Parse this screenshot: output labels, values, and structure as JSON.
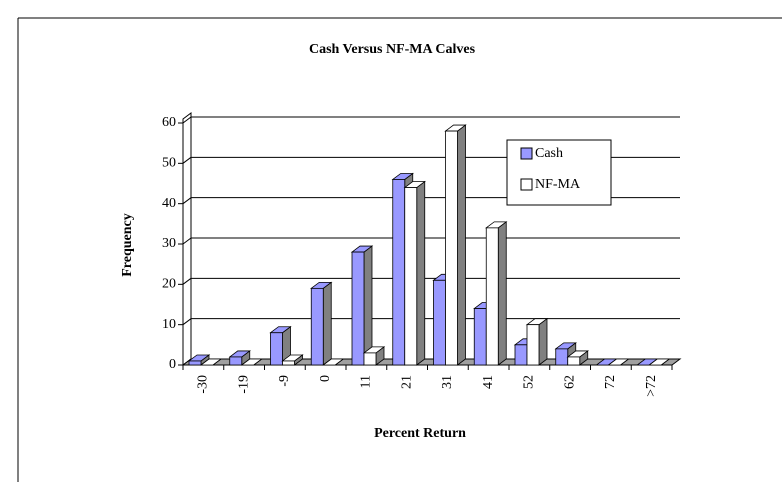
{
  "chart_data": {
    "type": "bar3d",
    "title": "Cash Versus NF-MA Calves",
    "xlabel": "Percent Return",
    "ylabel": "Frequency",
    "categories": [
      "-30",
      "-19",
      "-9",
      "0",
      "11",
      "21",
      "31",
      "41",
      "52",
      "62",
      "72",
      ">72"
    ],
    "series": [
      {
        "name": "Cash",
        "color": "#9999ff",
        "values": [
          1,
          2,
          8,
          19,
          28,
          46,
          21,
          14,
          5,
          4,
          0,
          0
        ]
      },
      {
        "name": "NF-MA",
        "color": "#ffffff",
        "values": [
          0,
          0,
          1,
          0,
          3,
          44,
          58,
          34,
          10,
          2,
          0,
          0
        ]
      }
    ],
    "ylim": [
      0,
      60
    ],
    "yticks": [
      0,
      10,
      20,
      30,
      40,
      50,
      60
    ],
    "grid": true,
    "legend": "upper right"
  }
}
